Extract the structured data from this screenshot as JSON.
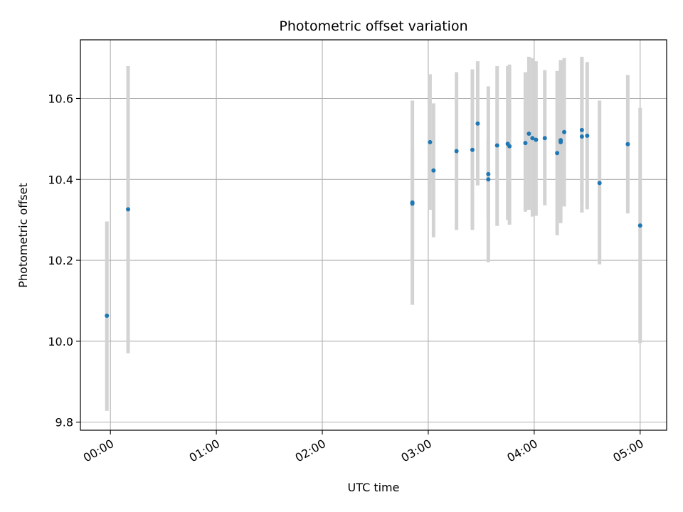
{
  "chart_data": {
    "type": "scatter",
    "title": "Photometric offset variation",
    "xlabel": "UTC time",
    "ylabel": "Photometric offset",
    "grid": true,
    "legend": "none",
    "xlim": [
      "23:43",
      "05:15"
    ],
    "ylim": [
      9.78,
      10.745
    ],
    "x_ticks": [
      "00:00",
      "01:00",
      "02:00",
      "03:00",
      "04:00",
      "05:00"
    ],
    "y_ticks": [
      9.8,
      10.0,
      10.2,
      10.4,
      10.6
    ],
    "colors": {
      "points": "#1f77b4",
      "errorbars": "#d3d3d3",
      "grid": "#b0b0b0",
      "axes": "#000000"
    },
    "points": [
      {
        "t": "23:58",
        "y": 10.063,
        "ymin": 9.828,
        "ymax": 10.296
      },
      {
        "t": "00:10",
        "y": 10.326,
        "ymin": 9.97,
        "ymax": 10.68
      },
      {
        "t": "02:51",
        "y": 10.343,
        "ymin": 10.09,
        "ymax": 10.595
      },
      {
        "t": "02:51",
        "y": 10.34,
        "ymin": 10.2,
        "ymax": 10.48
      },
      {
        "t": "03:01",
        "y": 10.492,
        "ymin": 10.325,
        "ymax": 10.66
      },
      {
        "t": "03:03",
        "y": 10.422,
        "ymin": 10.257,
        "ymax": 10.588
      },
      {
        "t": "03:16",
        "y": 10.47,
        "ymin": 10.275,
        "ymax": 10.665
      },
      {
        "t": "03:25",
        "y": 10.473,
        "ymin": 10.275,
        "ymax": 10.672
      },
      {
        "t": "03:28",
        "y": 10.538,
        "ymin": 10.385,
        "ymax": 10.692
      },
      {
        "t": "03:34",
        "y": 10.413,
        "ymin": 10.195,
        "ymax": 10.63
      },
      {
        "t": "03:34",
        "y": 10.4,
        "ymin": 10.3,
        "ymax": 10.5
      },
      {
        "t": "03:39",
        "y": 10.484,
        "ymin": 10.285,
        "ymax": 10.68
      },
      {
        "t": "03:45",
        "y": 10.488,
        "ymin": 10.3,
        "ymax": 10.68
      },
      {
        "t": "03:46",
        "y": 10.482,
        "ymin": 10.288,
        "ymax": 10.684
      },
      {
        "t": "03:55",
        "y": 10.49,
        "ymin": 10.32,
        "ymax": 10.665
      },
      {
        "t": "03:57",
        "y": 10.513,
        "ymin": 10.325,
        "ymax": 10.703
      },
      {
        "t": "03:59",
        "y": 10.502,
        "ymin": 10.308,
        "ymax": 10.7
      },
      {
        "t": "04:01",
        "y": 10.498,
        "ymin": 10.31,
        "ymax": 10.692
      },
      {
        "t": "04:06",
        "y": 10.502,
        "ymin": 10.336,
        "ymax": 10.67
      },
      {
        "t": "04:13",
        "y": 10.465,
        "ymin": 10.262,
        "ymax": 10.668
      },
      {
        "t": "04:15",
        "y": 10.497,
        "ymin": 10.3,
        "ymax": 10.695
      },
      {
        "t": "04:15",
        "y": 10.492,
        "ymin": 10.292,
        "ymax": 10.692
      },
      {
        "t": "04:17",
        "y": 10.517,
        "ymin": 10.333,
        "ymax": 10.7
      },
      {
        "t": "04:27",
        "y": 10.522,
        "ymin": 10.34,
        "ymax": 10.703
      },
      {
        "t": "04:27",
        "y": 10.506,
        "ymin": 10.318,
        "ymax": 10.695
      },
      {
        "t": "04:30",
        "y": 10.508,
        "ymin": 10.326,
        "ymax": 10.69
      },
      {
        "t": "04:37",
        "y": 10.391,
        "ymin": 10.19,
        "ymax": 10.595
      },
      {
        "t": "04:53",
        "y": 10.487,
        "ymin": 10.316,
        "ymax": 10.658
      },
      {
        "t": "05:00",
        "y": 10.286,
        "ymin": 9.995,
        "ymax": 10.577
      }
    ]
  }
}
